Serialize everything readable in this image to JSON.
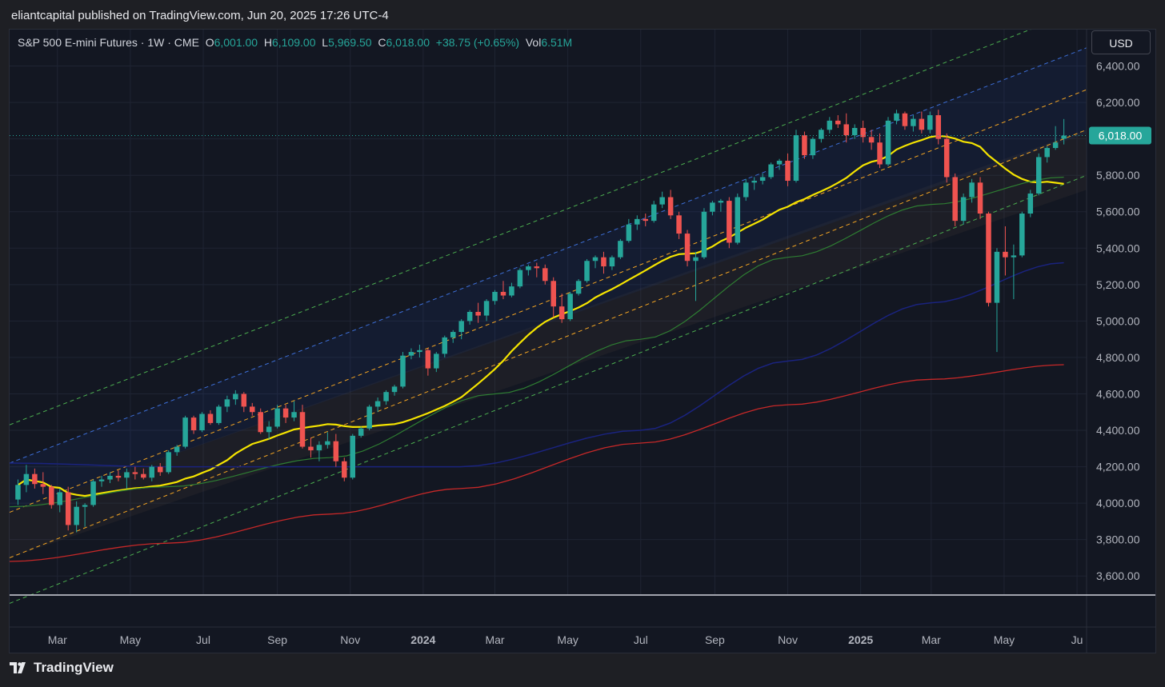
{
  "header": {
    "published_line": "eliantcapital published on TradingView.com, Jun 20, 2025 17:26 UTC-4"
  },
  "legend": {
    "symbol": "S&P 500 E-mini Futures · 1W · CME",
    "o_label": "O",
    "o_value": "6,001.00",
    "h_label": "H",
    "h_value": "6,109.00",
    "l_label": "L",
    "l_value": "5,969.50",
    "c_label": "C",
    "c_value": "6,018.00",
    "change": "+38.75 (+0.65%)",
    "vol_label": "Vol",
    "vol_value": "6.51M"
  },
  "currency_button": "USD",
  "brand": {
    "name": "TradingView"
  },
  "colors": {
    "up": "#26a69a",
    "down": "#ef5350",
    "ma20": "#f5e400",
    "ma50": "#2e7d32",
    "ma100": "#1a237e",
    "ma200": "#c62828"
  },
  "chart_data": {
    "type": "candlestick",
    "title": "S&P 500 E-mini Futures · 1W · CME",
    "ylim": [
      3500,
      6600
    ],
    "y_ticks": [
      3600,
      3800,
      4000,
      4200,
      4400,
      4600,
      4800,
      5000,
      5200,
      5400,
      5600,
      5800,
      6000,
      6200,
      6400
    ],
    "y_tick_labels": [
      "3,600.00",
      "3,800.00",
      "4,000.00",
      "4,200.00",
      "4,400.00",
      "4,600.00",
      "4,800.00",
      "5,000.00",
      "5,200.00",
      "5,400.00",
      "5,600.00",
      "5,800.00",
      "6,000.00",
      "6,200.00",
      "6,400.00"
    ],
    "x_ticks": [
      {
        "label": "Mar",
        "date": "2023-03-01"
      },
      {
        "label": "May",
        "date": "2023-05-01"
      },
      {
        "label": "Jul",
        "date": "2023-07-01"
      },
      {
        "label": "Sep",
        "date": "2023-09-01"
      },
      {
        "label": "Nov",
        "date": "2023-11-01"
      },
      {
        "label": "2024",
        "date": "2024-01-01",
        "bold": true
      },
      {
        "label": "Mar",
        "date": "2024-03-01"
      },
      {
        "label": "May",
        "date": "2024-05-01"
      },
      {
        "label": "Jul",
        "date": "2024-07-01"
      },
      {
        "label": "Sep",
        "date": "2024-09-01"
      },
      {
        "label": "Nov",
        "date": "2024-11-01"
      },
      {
        "label": "2025",
        "date": "2025-01-01",
        "bold": true
      },
      {
        "label": "Mar",
        "date": "2025-03-01"
      },
      {
        "label": "May",
        "date": "2025-05-01"
      },
      {
        "label": "Ju",
        "date": "2025-07-01"
      }
    ],
    "last_price_label": "6,018.00",
    "last_price": 6018,
    "candles": [
      {
        "date": "2023-01-27",
        "o": 4020,
        "h": 4130,
        "l": 3990,
        "c": 4100
      },
      {
        "date": "2023-02-03",
        "o": 4100,
        "h": 4210,
        "l": 4060,
        "c": 4160
      },
      {
        "date": "2023-02-10",
        "o": 4160,
        "h": 4190,
        "l": 4080,
        "c": 4105
      },
      {
        "date": "2023-02-17",
        "o": 4105,
        "h": 4170,
        "l": 4050,
        "c": 4090
      },
      {
        "date": "2023-02-24",
        "o": 4090,
        "h": 4100,
        "l": 3970,
        "c": 3990
      },
      {
        "date": "2023-03-03",
        "o": 3990,
        "h": 4080,
        "l": 3950,
        "c": 4060
      },
      {
        "date": "2023-03-10",
        "o": 4060,
        "h": 4090,
        "l": 3850,
        "c": 3880
      },
      {
        "date": "2023-03-17",
        "o": 3880,
        "h": 4010,
        "l": 3840,
        "c": 3980
      },
      {
        "date": "2023-03-24",
        "o": 3980,
        "h": 4000,
        "l": 3870,
        "c": 3990
      },
      {
        "date": "2023-03-31",
        "o": 3990,
        "h": 4130,
        "l": 3980,
        "c": 4120
      },
      {
        "date": "2023-04-07",
        "o": 4120,
        "h": 4150,
        "l": 4090,
        "c": 4130
      },
      {
        "date": "2023-04-14",
        "o": 4130,
        "h": 4170,
        "l": 4110,
        "c": 4150
      },
      {
        "date": "2023-04-21",
        "o": 4150,
        "h": 4180,
        "l": 4120,
        "c": 4140
      },
      {
        "date": "2023-04-28",
        "o": 4140,
        "h": 4190,
        "l": 4080,
        "c": 4170
      },
      {
        "date": "2023-05-05",
        "o": 4170,
        "h": 4200,
        "l": 4130,
        "c": 4160
      },
      {
        "date": "2023-05-12",
        "o": 4160,
        "h": 4190,
        "l": 4130,
        "c": 4140
      },
      {
        "date": "2023-05-19",
        "o": 4140,
        "h": 4210,
        "l": 4120,
        "c": 4200
      },
      {
        "date": "2023-05-26",
        "o": 4200,
        "h": 4220,
        "l": 4150,
        "c": 4170
      },
      {
        "date": "2023-06-02",
        "o": 4170,
        "h": 4290,
        "l": 4160,
        "c": 4280
      },
      {
        "date": "2023-06-09",
        "o": 4280,
        "h": 4320,
        "l": 4260,
        "c": 4310
      },
      {
        "date": "2023-06-16",
        "o": 4310,
        "h": 4480,
        "l": 4300,
        "c": 4470
      },
      {
        "date": "2023-06-23",
        "o": 4470,
        "h": 4480,
        "l": 4380,
        "c": 4400
      },
      {
        "date": "2023-06-30",
        "o": 4400,
        "h": 4500,
        "l": 4390,
        "c": 4490
      },
      {
        "date": "2023-07-07",
        "o": 4490,
        "h": 4510,
        "l": 4430,
        "c": 4440
      },
      {
        "date": "2023-07-14",
        "o": 4440,
        "h": 4540,
        "l": 4430,
        "c": 4530
      },
      {
        "date": "2023-07-21",
        "o": 4530,
        "h": 4590,
        "l": 4500,
        "c": 4570
      },
      {
        "date": "2023-07-28",
        "o": 4570,
        "h": 4620,
        "l": 4540,
        "c": 4600
      },
      {
        "date": "2023-08-04",
        "o": 4600,
        "h": 4610,
        "l": 4500,
        "c": 4530
      },
      {
        "date": "2023-08-11",
        "o": 4530,
        "h": 4550,
        "l": 4480,
        "c": 4500
      },
      {
        "date": "2023-08-18",
        "o": 4500,
        "h": 4520,
        "l": 4380,
        "c": 4390
      },
      {
        "date": "2023-08-25",
        "o": 4390,
        "h": 4450,
        "l": 4350,
        "c": 4420
      },
      {
        "date": "2023-09-01",
        "o": 4420,
        "h": 4540,
        "l": 4410,
        "c": 4520
      },
      {
        "date": "2023-09-08",
        "o": 4520,
        "h": 4540,
        "l": 4440,
        "c": 4470
      },
      {
        "date": "2023-09-15",
        "o": 4470,
        "h": 4560,
        "l": 4450,
        "c": 4500
      },
      {
        "date": "2023-09-22",
        "o": 4500,
        "h": 4540,
        "l": 4300,
        "c": 4310
      },
      {
        "date": "2023-09-29",
        "o": 4310,
        "h": 4360,
        "l": 4250,
        "c": 4290
      },
      {
        "date": "2023-10-06",
        "o": 4290,
        "h": 4340,
        "l": 4230,
        "c": 4320
      },
      {
        "date": "2023-10-13",
        "o": 4320,
        "h": 4390,
        "l": 4300,
        "c": 4340
      },
      {
        "date": "2023-10-20",
        "o": 4340,
        "h": 4380,
        "l": 4200,
        "c": 4230
      },
      {
        "date": "2023-10-27",
        "o": 4230,
        "h": 4250,
        "l": 4120,
        "c": 4140
      },
      {
        "date": "2023-11-03",
        "o": 4140,
        "h": 4380,
        "l": 4130,
        "c": 4370
      },
      {
        "date": "2023-11-10",
        "o": 4370,
        "h": 4420,
        "l": 4360,
        "c": 4410
      },
      {
        "date": "2023-11-17",
        "o": 4410,
        "h": 4540,
        "l": 4400,
        "c": 4530
      },
      {
        "date": "2023-11-24",
        "o": 4530,
        "h": 4580,
        "l": 4500,
        "c": 4560
      },
      {
        "date": "2023-12-01",
        "o": 4560,
        "h": 4620,
        "l": 4540,
        "c": 4610
      },
      {
        "date": "2023-12-08",
        "o": 4610,
        "h": 4650,
        "l": 4590,
        "c": 4640
      },
      {
        "date": "2023-12-15",
        "o": 4640,
        "h": 4830,
        "l": 4630,
        "c": 4810
      },
      {
        "date": "2023-12-22",
        "o": 4810,
        "h": 4850,
        "l": 4790,
        "c": 4830
      },
      {
        "date": "2023-12-29",
        "o": 4830,
        "h": 4870,
        "l": 4800,
        "c": 4840
      },
      {
        "date": "2024-01-05",
        "o": 4840,
        "h": 4850,
        "l": 4700,
        "c": 4740
      },
      {
        "date": "2024-01-12",
        "o": 4740,
        "h": 4830,
        "l": 4720,
        "c": 4820
      },
      {
        "date": "2024-01-19",
        "o": 4820,
        "h": 4920,
        "l": 4800,
        "c": 4910
      },
      {
        "date": "2024-01-26",
        "o": 4910,
        "h": 4950,
        "l": 4880,
        "c": 4940
      },
      {
        "date": "2024-02-02",
        "o": 4940,
        "h": 5010,
        "l": 4900,
        "c": 5000
      },
      {
        "date": "2024-02-09",
        "o": 5000,
        "h": 5060,
        "l": 4980,
        "c": 5050
      },
      {
        "date": "2024-02-16",
        "o": 5050,
        "h": 5100,
        "l": 4990,
        "c": 5030
      },
      {
        "date": "2024-02-23",
        "o": 5030,
        "h": 5120,
        "l": 5000,
        "c": 5110
      },
      {
        "date": "2024-03-01",
        "o": 5110,
        "h": 5170,
        "l": 5090,
        "c": 5160
      },
      {
        "date": "2024-03-08",
        "o": 5160,
        "h": 5220,
        "l": 5120,
        "c": 5140
      },
      {
        "date": "2024-03-15",
        "o": 5140,
        "h": 5210,
        "l": 5130,
        "c": 5190
      },
      {
        "date": "2024-03-22",
        "o": 5190,
        "h": 5290,
        "l": 5180,
        "c": 5280
      },
      {
        "date": "2024-03-29",
        "o": 5280,
        "h": 5310,
        "l": 5250,
        "c": 5300
      },
      {
        "date": "2024-04-05",
        "o": 5300,
        "h": 5320,
        "l": 5240,
        "c": 5290
      },
      {
        "date": "2024-04-12",
        "o": 5290,
        "h": 5310,
        "l": 5200,
        "c": 5220
      },
      {
        "date": "2024-04-19",
        "o": 5220,
        "h": 5240,
        "l": 5020,
        "c": 5080
      },
      {
        "date": "2024-04-26",
        "o": 5080,
        "h": 5150,
        "l": 4990,
        "c": 5010
      },
      {
        "date": "2024-05-03",
        "o": 5010,
        "h": 5160,
        "l": 5000,
        "c": 5150
      },
      {
        "date": "2024-05-10",
        "o": 5150,
        "h": 5230,
        "l": 5140,
        "c": 5220
      },
      {
        "date": "2024-05-17",
        "o": 5220,
        "h": 5340,
        "l": 5210,
        "c": 5330
      },
      {
        "date": "2024-05-24",
        "o": 5330,
        "h": 5360,
        "l": 5290,
        "c": 5350
      },
      {
        "date": "2024-05-31",
        "o": 5350,
        "h": 5380,
        "l": 5260,
        "c": 5300
      },
      {
        "date": "2024-06-07",
        "o": 5300,
        "h": 5360,
        "l": 5280,
        "c": 5350
      },
      {
        "date": "2024-06-14",
        "o": 5350,
        "h": 5450,
        "l": 5340,
        "c": 5440
      },
      {
        "date": "2024-06-21",
        "o": 5440,
        "h": 5560,
        "l": 5430,
        "c": 5530
      },
      {
        "date": "2024-06-28",
        "o": 5530,
        "h": 5580,
        "l": 5500,
        "c": 5560
      },
      {
        "date": "2024-07-05",
        "o": 5560,
        "h": 5590,
        "l": 5520,
        "c": 5550
      },
      {
        "date": "2024-07-12",
        "o": 5550,
        "h": 5660,
        "l": 5540,
        "c": 5640
      },
      {
        "date": "2024-07-19",
        "o": 5640,
        "h": 5710,
        "l": 5620,
        "c": 5680
      },
      {
        "date": "2024-07-26",
        "o": 5680,
        "h": 5720,
        "l": 5560,
        "c": 5580
      },
      {
        "date": "2024-08-02",
        "o": 5580,
        "h": 5600,
        "l": 5450,
        "c": 5480
      },
      {
        "date": "2024-08-09",
        "o": 5480,
        "h": 5500,
        "l": 5300,
        "c": 5330
      },
      {
        "date": "2024-08-16",
        "o": 5330,
        "h": 5380,
        "l": 5110,
        "c": 5350
      },
      {
        "date": "2024-08-23",
        "o": 5350,
        "h": 5620,
        "l": 5340,
        "c": 5600
      },
      {
        "date": "2024-08-30",
        "o": 5600,
        "h": 5660,
        "l": 5580,
        "c": 5650
      },
      {
        "date": "2024-09-06",
        "o": 5650,
        "h": 5670,
        "l": 5600,
        "c": 5660
      },
      {
        "date": "2024-09-13",
        "o": 5660,
        "h": 5680,
        "l": 5400,
        "c": 5430
      },
      {
        "date": "2024-09-20",
        "o": 5430,
        "h": 5700,
        "l": 5420,
        "c": 5680
      },
      {
        "date": "2024-09-27",
        "o": 5680,
        "h": 5780,
        "l": 5660,
        "c": 5760
      },
      {
        "date": "2024-10-04",
        "o": 5760,
        "h": 5790,
        "l": 5720,
        "c": 5770
      },
      {
        "date": "2024-10-11",
        "o": 5770,
        "h": 5810,
        "l": 5750,
        "c": 5790
      },
      {
        "date": "2024-10-18",
        "o": 5790,
        "h": 5870,
        "l": 5780,
        "c": 5860
      },
      {
        "date": "2024-10-25",
        "o": 5860,
        "h": 5890,
        "l": 5830,
        "c": 5880
      },
      {
        "date": "2024-11-01",
        "o": 5880,
        "h": 5920,
        "l": 5740,
        "c": 5770
      },
      {
        "date": "2024-11-08",
        "o": 5770,
        "h": 6050,
        "l": 5760,
        "c": 6020
      },
      {
        "date": "2024-11-15",
        "o": 6020,
        "h": 6040,
        "l": 5890,
        "c": 5910
      },
      {
        "date": "2024-11-22",
        "o": 5910,
        "h": 6010,
        "l": 5890,
        "c": 6000
      },
      {
        "date": "2024-11-29",
        "o": 6000,
        "h": 6060,
        "l": 5980,
        "c": 6050
      },
      {
        "date": "2024-12-06",
        "o": 6050,
        "h": 6120,
        "l": 6030,
        "c": 6100
      },
      {
        "date": "2024-12-13",
        "o": 6100,
        "h": 6130,
        "l": 6060,
        "c": 6080
      },
      {
        "date": "2024-12-20",
        "o": 6080,
        "h": 6140,
        "l": 5980,
        "c": 6020
      },
      {
        "date": "2024-12-27",
        "o": 6020,
        "h": 6080,
        "l": 6000,
        "c": 6060
      },
      {
        "date": "2025-01-03",
        "o": 6060,
        "h": 6100,
        "l": 5980,
        "c": 6010
      },
      {
        "date": "2025-01-10",
        "o": 6010,
        "h": 6050,
        "l": 5940,
        "c": 5980
      },
      {
        "date": "2025-01-17",
        "o": 5980,
        "h": 6030,
        "l": 5840,
        "c": 5860
      },
      {
        "date": "2025-01-24",
        "o": 5860,
        "h": 6120,
        "l": 5850,
        "c": 6100
      },
      {
        "date": "2025-01-31",
        "o": 6100,
        "h": 6160,
        "l": 6080,
        "c": 6140
      },
      {
        "date": "2025-02-07",
        "o": 6140,
        "h": 6150,
        "l": 6050,
        "c": 6070
      },
      {
        "date": "2025-02-14",
        "o": 6070,
        "h": 6130,
        "l": 6040,
        "c": 6110
      },
      {
        "date": "2025-02-21",
        "o": 6110,
        "h": 6150,
        "l": 6030,
        "c": 6050
      },
      {
        "date": "2025-02-28",
        "o": 6050,
        "h": 6150,
        "l": 6030,
        "c": 6130
      },
      {
        "date": "2025-03-07",
        "o": 6130,
        "h": 6160,
        "l": 5970,
        "c": 6000
      },
      {
        "date": "2025-03-14",
        "o": 6000,
        "h": 6030,
        "l": 5760,
        "c": 5790
      },
      {
        "date": "2025-03-21",
        "o": 5790,
        "h": 5810,
        "l": 5520,
        "c": 5550
      },
      {
        "date": "2025-03-28",
        "o": 5550,
        "h": 5700,
        "l": 5530,
        "c": 5680
      },
      {
        "date": "2025-04-04",
        "o": 5680,
        "h": 5780,
        "l": 5650,
        "c": 5760
      },
      {
        "date": "2025-04-11",
        "o": 5760,
        "h": 5790,
        "l": 5560,
        "c": 5590
      },
      {
        "date": "2025-04-18",
        "o": 5590,
        "h": 5600,
        "l": 5080,
        "c": 5100
      },
      {
        "date": "2025-04-25",
        "o": 5100,
        "h": 5400,
        "l": 4830,
        "c": 5380
      },
      {
        "date": "2025-05-02",
        "o": 5380,
        "h": 5520,
        "l": 5250,
        "c": 5350
      },
      {
        "date": "2025-05-09",
        "o": 5350,
        "h": 5420,
        "l": 5120,
        "c": 5360
      },
      {
        "date": "2025-05-16",
        "o": 5360,
        "h": 5600,
        "l": 5350,
        "c": 5590
      },
      {
        "date": "2025-05-23",
        "o": 5590,
        "h": 5720,
        "l": 5570,
        "c": 5700
      },
      {
        "date": "2025-05-30",
        "o": 5700,
        "h": 5920,
        "l": 5690,
        "c": 5900
      },
      {
        "date": "2025-06-06",
        "o": 5900,
        "h": 5960,
        "l": 5870,
        "c": 5950
      },
      {
        "date": "2025-06-13",
        "o": 5950,
        "h": 6070,
        "l": 5940,
        "c": 5980
      },
      {
        "date": "2025-06-20",
        "o": 6001,
        "h": 6109,
        "l": 5969.5,
        "c": 6018
      }
    ]
  }
}
